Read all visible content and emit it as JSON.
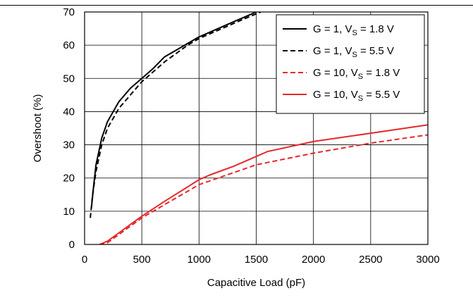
{
  "chart_data": {
    "type": "line",
    "title": "",
    "xlabel": "Capacitive Load (pF)",
    "ylabel": "Overshoot (%)",
    "xlim": [
      0,
      3000
    ],
    "ylim": [
      0,
      70
    ],
    "xticks": [
      0,
      500,
      1000,
      1500,
      2000,
      2500,
      3000
    ],
    "yticks": [
      0,
      10,
      20,
      30,
      40,
      50,
      60,
      70
    ],
    "grid": true,
    "legend_position": "top-right",
    "series": [
      {
        "name": "G = 1, VS = 1.8 V",
        "name_main": "G = 1, V",
        "name_sub": "S",
        "name_tail": " = 1.8 V",
        "color": "#000000",
        "dash": "solid",
        "x": [
          60,
          80,
          100,
          150,
          200,
          300,
          400,
          500,
          600,
          700,
          800,
          900,
          1000,
          1100,
          1200,
          1300,
          1400,
          1500
        ],
        "y": [
          11,
          18,
          24,
          32,
          37,
          43,
          47,
          50,
          53,
          56.5,
          58.5,
          60.5,
          62.5,
          64,
          65.5,
          67,
          68.5,
          70
        ]
      },
      {
        "name": "G = 1, VS = 5.5 V",
        "name_main": "G = 1, V",
        "name_sub": "S",
        "name_tail": " = 5.5 V",
        "color": "#000000",
        "dash": "dashed",
        "x": [
          50,
          70,
          100,
          150,
          200,
          300,
          400,
          500,
          600,
          700,
          800,
          900,
          1000,
          1100,
          1200,
          1300,
          1400,
          1540
        ],
        "y": [
          8,
          15,
          22,
          30,
          35,
          41,
          45,
          49,
          52,
          55,
          57.5,
          60,
          62,
          63.5,
          65,
          66.5,
          68,
          70
        ]
      },
      {
        "name": "G = 10, VS = 1.8 V",
        "name_main": "G = 10, V",
        "name_sub": "S",
        "name_tail": " = 1.8 V",
        "color": "#e4282c",
        "dash": "dashed",
        "x": [
          130,
          200,
          300,
          400,
          500,
          700,
          1000,
          1500,
          2000,
          2500,
          3000
        ],
        "y": [
          0,
          0.5,
          3,
          5.5,
          8,
          12,
          18,
          24,
          27.5,
          30.5,
          33
        ]
      },
      {
        "name": "G = 10, VS = 5.5 V",
        "name_main": "G = 10, V",
        "name_sub": "S",
        "name_tail": " = 5.5 V",
        "color": "#e4282c",
        "dash": "solid",
        "x": [
          130,
          200,
          300,
          400,
          500,
          700,
          1000,
          1100,
          1300,
          1500,
          1600,
          2000,
          2500,
          3000
        ],
        "y": [
          0,
          1,
          3.5,
          6,
          8.5,
          13,
          19.5,
          21,
          23.5,
          26.5,
          28,
          31,
          33.5,
          36
        ]
      }
    ]
  }
}
